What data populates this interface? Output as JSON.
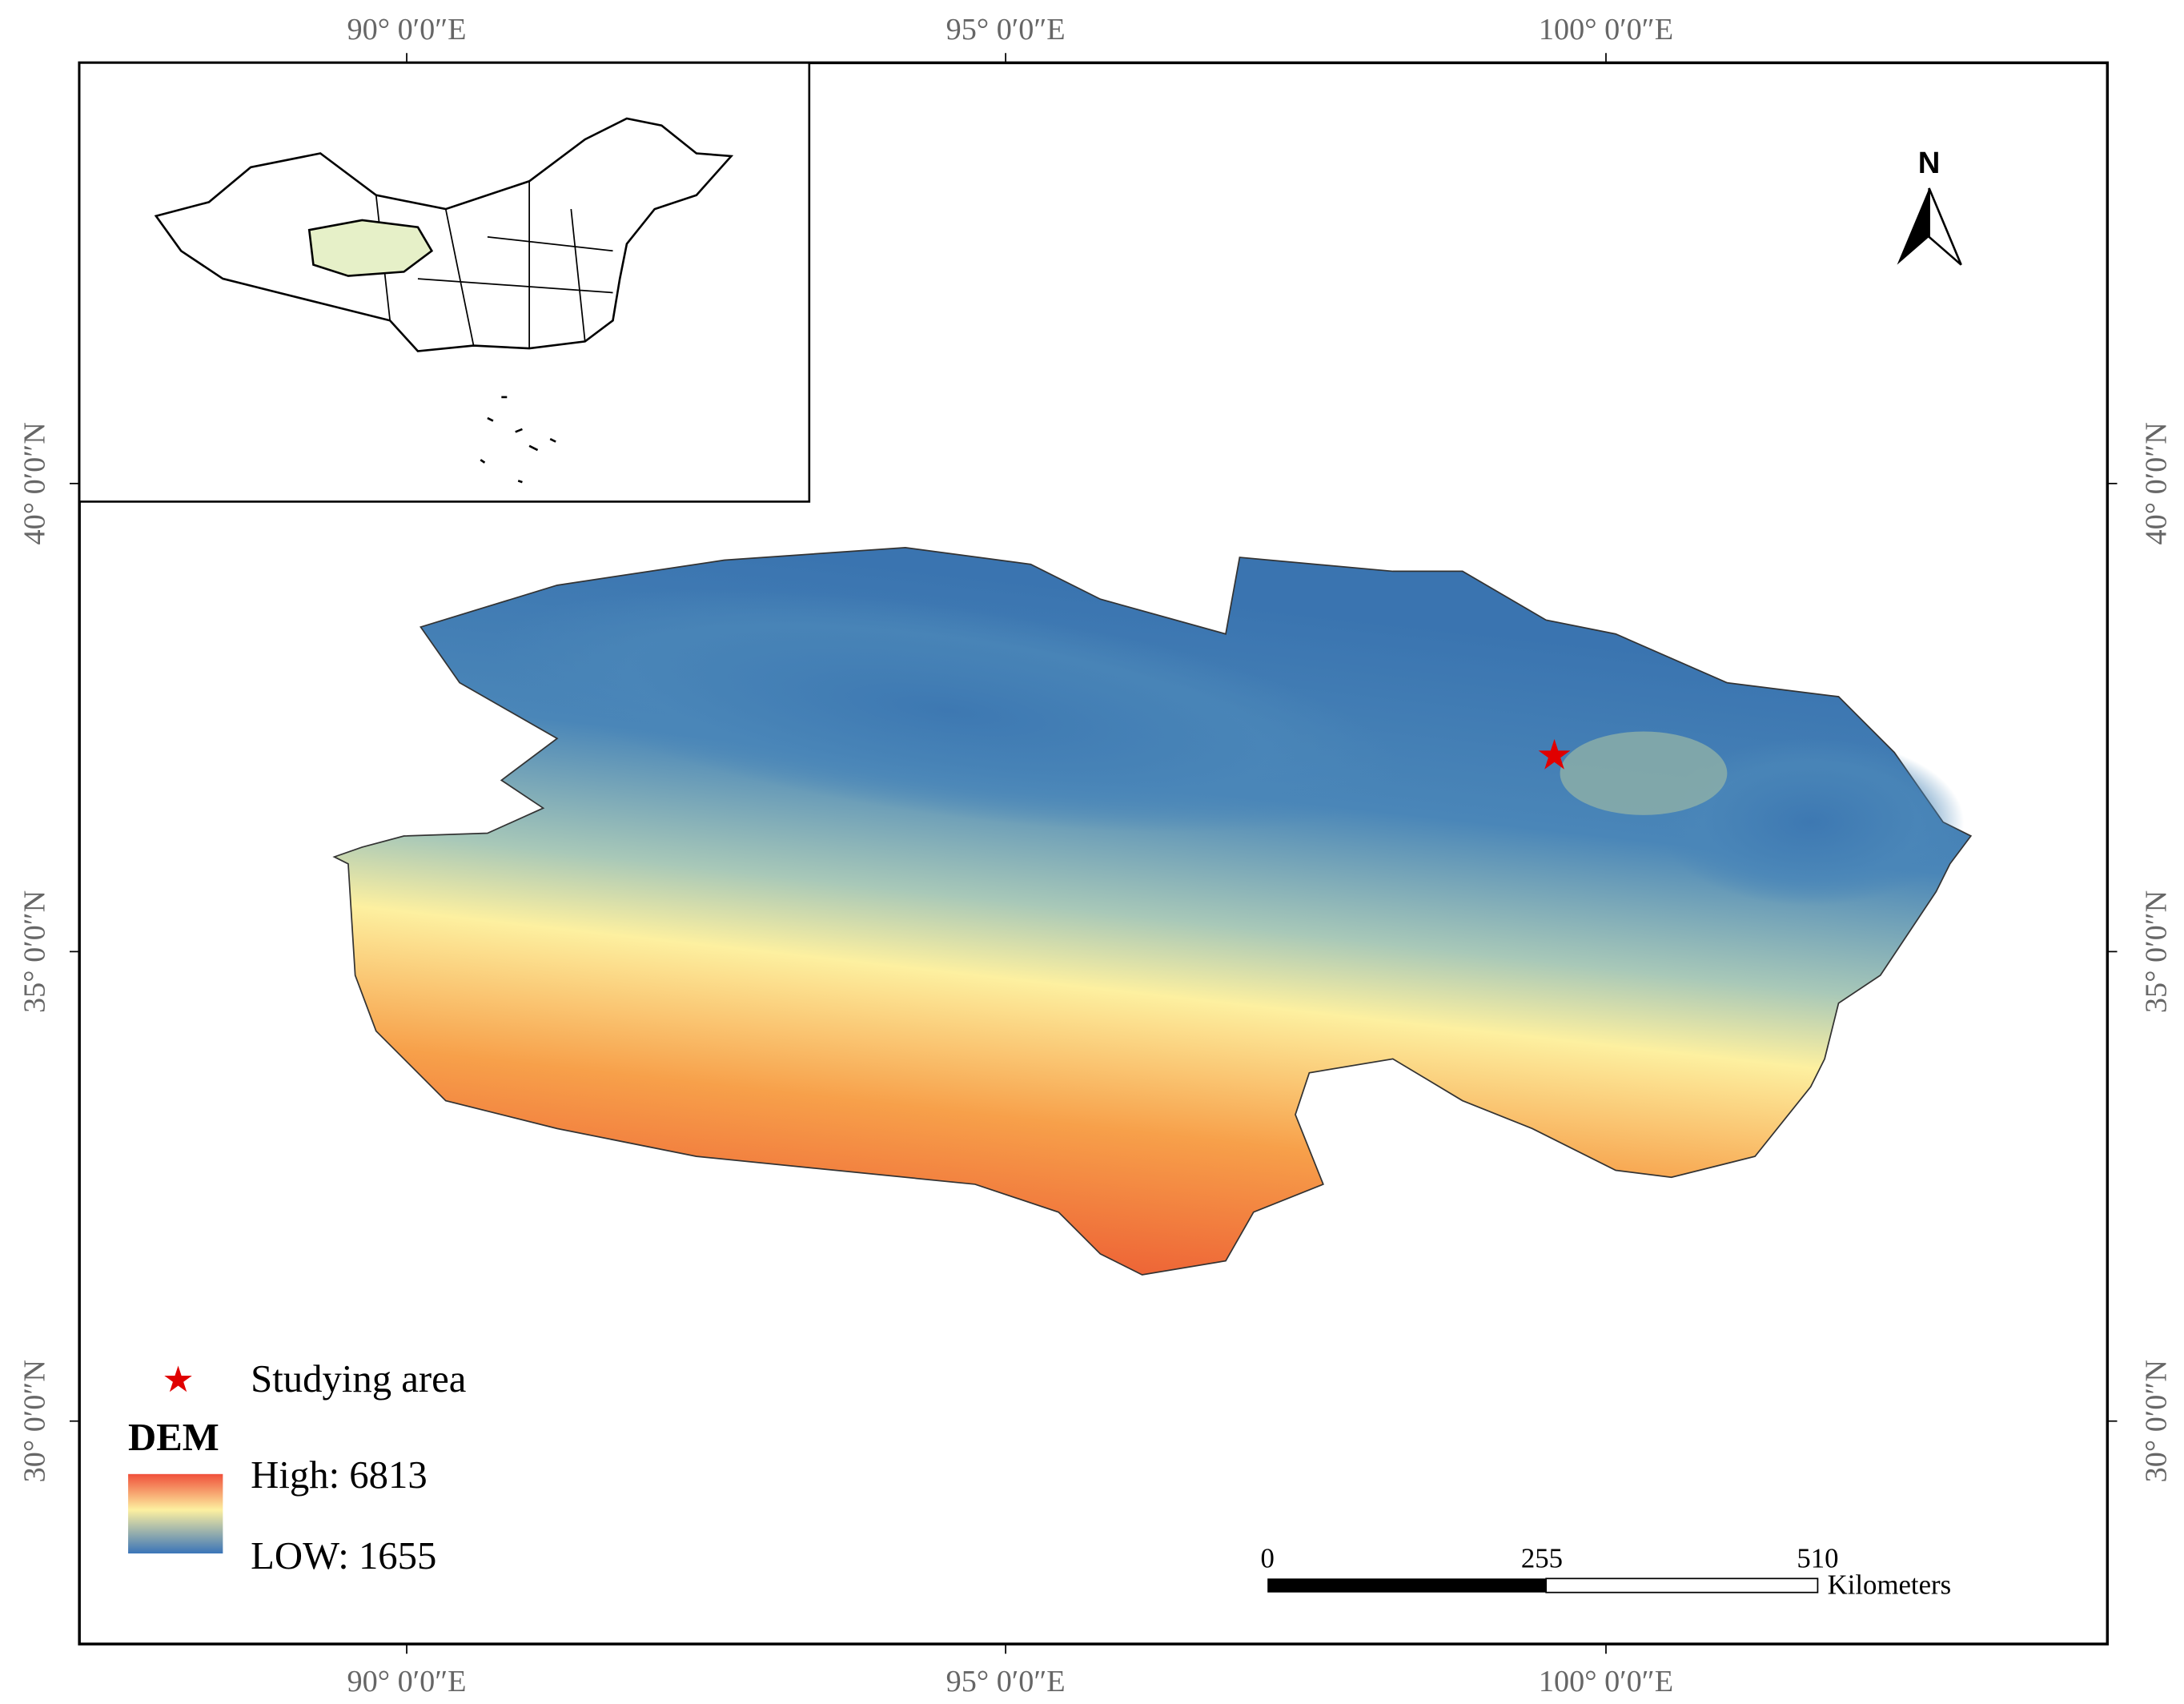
{
  "frame": {
    "top_labels": [
      "90° 0′0″E",
      "95° 0′0″E",
      "100° 0′0″E"
    ],
    "bottom_labels": [
      "90° 0′0″E",
      "95° 0′0″E",
      "100° 0′0″E"
    ],
    "left_labels": [
      "40° 0′0″N",
      "35° 0′0″N",
      "30° 0′0″N"
    ],
    "right_labels": [
      "40° 0′0″N",
      "35° 0′0″N",
      "30° 0′0″N"
    ]
  },
  "north_arrow": "N",
  "legend": {
    "marker_label": "Studying area",
    "title": "DEM",
    "high": "High: 6813",
    "low": "LOW: 1655"
  },
  "scale_bar": {
    "labels": [
      "0",
      "255",
      "510"
    ],
    "unit": "Kilometers"
  }
}
